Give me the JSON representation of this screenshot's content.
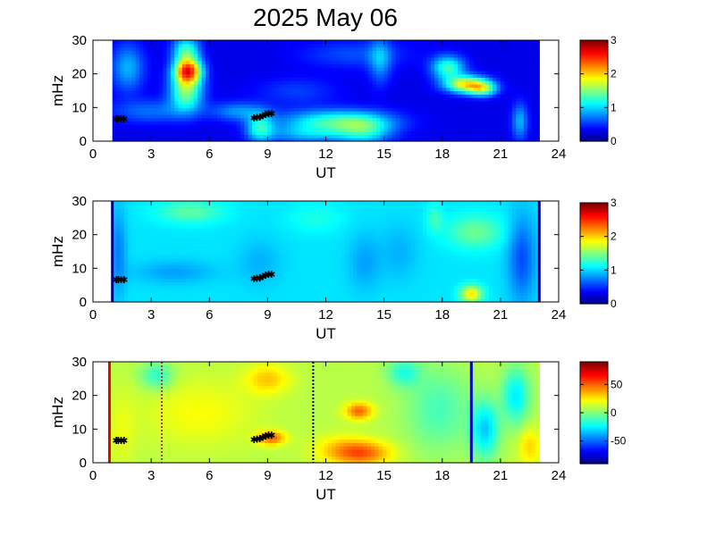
{
  "title": "2025 May 06",
  "chart_data": [
    {
      "type": "heatmap",
      "xlabel": "UT",
      "ylabel": "mHz",
      "xlim": [
        0,
        24
      ],
      "ylim": [
        0,
        30
      ],
      "xticks": [
        "0",
        "3",
        "6",
        "9",
        "12",
        "15",
        "18",
        "21",
        "24"
      ],
      "yticks": [
        "0",
        "10",
        "20",
        "30"
      ],
      "data_extent_ut": [
        1.0,
        23.0
      ],
      "colorbar": {
        "range": [
          0,
          3
        ],
        "ticks": [
          "0",
          "1",
          "2",
          "3"
        ]
      },
      "baseline": 0.3,
      "blobs": [
        {
          "x": 4.9,
          "y": 21,
          "sx": 0.5,
          "sy": 2.5,
          "v": 1.9
        },
        {
          "x": 4.8,
          "y": 15,
          "sx": 0.6,
          "sy": 4,
          "v": 1.2
        },
        {
          "x": 4.8,
          "y": 27,
          "sx": 0.5,
          "sy": 3,
          "v": 1.0
        },
        {
          "x": 1.8,
          "y": 22,
          "sx": 0.6,
          "sy": 5,
          "v": 0.6
        },
        {
          "x": 3.0,
          "y": 9,
          "sx": 1.5,
          "sy": 2.5,
          "v": 0.4
        },
        {
          "x": 7.5,
          "y": 9,
          "sx": 1.0,
          "sy": 2,
          "v": 0.5
        },
        {
          "x": 8.6,
          "y": 4,
          "sx": 0.5,
          "sy": 3,
          "v": 0.8
        },
        {
          "x": 12.5,
          "y": 6,
          "sx": 2.0,
          "sy": 2.5,
          "v": 0.95
        },
        {
          "x": 14.0,
          "y": 3,
          "sx": 1.0,
          "sy": 3,
          "v": 0.7
        },
        {
          "x": 11.0,
          "y": 2,
          "sx": 1.5,
          "sy": 2,
          "v": 0.5
        },
        {
          "x": 14.8,
          "y": 24,
          "sx": 0.4,
          "sy": 5,
          "v": 0.5
        },
        {
          "x": 18.3,
          "y": 22,
          "sx": 0.6,
          "sy": 2.5,
          "v": 1.0
        },
        {
          "x": 19.3,
          "y": 17,
          "sx": 0.8,
          "sy": 1.8,
          "v": 1.6
        },
        {
          "x": 20.1,
          "y": 15.5,
          "sx": 0.5,
          "sy": 1.5,
          "v": 0.9
        },
        {
          "x": 22.0,
          "y": 6,
          "sx": 0.3,
          "sy": 4,
          "v": 0.6
        },
        {
          "x": 13.5,
          "y": 26,
          "sx": 2.0,
          "sy": 3,
          "v": 0.3
        },
        {
          "x": 10.5,
          "y": 15,
          "sx": 1.5,
          "sy": 3,
          "v": 0.25
        }
      ],
      "markers": [
        {
          "ut": 1.2,
          "mhz": 6.6
        },
        {
          "ut": 1.3,
          "mhz": 6.6
        },
        {
          "ut": 1.45,
          "mhz": 6.6
        },
        {
          "ut": 1.6,
          "mhz": 6.6
        },
        {
          "ut": 8.3,
          "mhz": 6.9
        },
        {
          "ut": 8.45,
          "mhz": 7.0
        },
        {
          "ut": 8.6,
          "mhz": 7.2
        },
        {
          "ut": 8.75,
          "mhz": 7.6
        },
        {
          "ut": 8.9,
          "mhz": 8.0
        },
        {
          "ut": 9.05,
          "mhz": 8.2
        },
        {
          "ut": 9.2,
          "mhz": 8.2
        }
      ],
      "lines": []
    },
    {
      "type": "heatmap",
      "xlabel": "UT",
      "ylabel": "mHz",
      "xlim": [
        0,
        24
      ],
      "ylim": [
        0,
        30
      ],
      "xticks": [
        "0",
        "3",
        "6",
        "9",
        "12",
        "15",
        "18",
        "21",
        "24"
      ],
      "yticks": [
        "0",
        "10",
        "20",
        "30"
      ],
      "data_extent_ut": [
        1.0,
        23.0
      ],
      "colorbar": {
        "range": [
          0,
          3
        ],
        "ticks": [
          "0",
          "1",
          "2",
          "3"
        ]
      },
      "baseline": 1.05,
      "blobs": [
        {
          "x": 5.0,
          "y": 27,
          "sx": 1.2,
          "sy": 2.5,
          "v": 0.35
        },
        {
          "x": 4.2,
          "y": 9,
          "sx": 1.5,
          "sy": 2.5,
          "v": -0.2
        },
        {
          "x": 8.6,
          "y": 12,
          "sx": 0.8,
          "sy": 5,
          "v": -0.15
        },
        {
          "x": 14.0,
          "y": 12,
          "sx": 0.6,
          "sy": 6,
          "v": -0.2
        },
        {
          "x": 15.8,
          "y": 15,
          "sx": 0.7,
          "sy": 6,
          "v": -0.15
        },
        {
          "x": 19.5,
          "y": 2.5,
          "sx": 0.4,
          "sy": 1.8,
          "v": 0.9
        },
        {
          "x": 19.7,
          "y": 21,
          "sx": 1.0,
          "sy": 3.5,
          "v": 0.4
        },
        {
          "x": 22.1,
          "y": 13,
          "sx": 0.5,
          "sy": 9,
          "v": -0.45
        },
        {
          "x": 1.3,
          "y": 15,
          "sx": 0.3,
          "sy": 9,
          "v": -0.3
        },
        {
          "x": 17.6,
          "y": 25,
          "sx": 0.3,
          "sy": 3,
          "v": 0.25
        },
        {
          "x": 11.5,
          "y": 25,
          "sx": 1.0,
          "sy": 3,
          "v": 0.15
        }
      ],
      "markers": [
        {
          "ut": 1.2,
          "mhz": 6.6
        },
        {
          "ut": 1.3,
          "mhz": 6.6
        },
        {
          "ut": 1.45,
          "mhz": 6.6
        },
        {
          "ut": 1.6,
          "mhz": 6.6
        },
        {
          "ut": 8.3,
          "mhz": 6.9
        },
        {
          "ut": 8.45,
          "mhz": 7.0
        },
        {
          "ut": 8.6,
          "mhz": 7.2
        },
        {
          "ut": 8.75,
          "mhz": 7.6
        },
        {
          "ut": 8.9,
          "mhz": 8.0
        },
        {
          "ut": 9.05,
          "mhz": 8.2
        },
        {
          "ut": 9.2,
          "mhz": 8.2
        }
      ],
      "lines": [
        {
          "ut": 1.0,
          "color": "#00008f",
          "style": "solid"
        },
        {
          "ut": 23.0,
          "color": "#00008f",
          "style": "solid"
        }
      ]
    },
    {
      "type": "heatmap",
      "xlabel": "UT",
      "ylabel": "mHz",
      "xlim": [
        0,
        24
      ],
      "ylim": [
        0,
        30
      ],
      "xticks": [
        "0",
        "3",
        "6",
        "9",
        "12",
        "15",
        "18",
        "21",
        "24"
      ],
      "yticks": [
        "0",
        "10",
        "20",
        "30"
      ],
      "data_extent_ut": [
        0.8,
        23.0
      ],
      "colorbar": {
        "range": [
          -90,
          90
        ],
        "ticks": [
          "50",
          "0",
          "-50"
        ],
        "tick_values": [
          50,
          0,
          -50
        ]
      },
      "baseline": 10,
      "blobs": [
        {
          "x": 5.5,
          "y": 15,
          "sx": 2.0,
          "sy": 7,
          "v": 12
        },
        {
          "x": 9.0,
          "y": 25,
          "sx": 0.8,
          "sy": 3,
          "v": 22
        },
        {
          "x": 13.7,
          "y": 15.5,
          "sx": 0.5,
          "sy": 1.8,
          "v": 40
        },
        {
          "x": 14.0,
          "y": 3,
          "sx": 1.0,
          "sy": 2.5,
          "v": 35
        },
        {
          "x": 12.8,
          "y": 4,
          "sx": 1.0,
          "sy": 3,
          "v": 20
        },
        {
          "x": 9.2,
          "y": 7.5,
          "sx": 0.5,
          "sy": 1.5,
          "v": 40
        },
        {
          "x": 3.3,
          "y": 26,
          "sx": 0.6,
          "sy": 3,
          "v": -25
        },
        {
          "x": 17.8,
          "y": 16,
          "sx": 1.2,
          "sy": 9,
          "v": -20
        },
        {
          "x": 20.2,
          "y": 10,
          "sx": 0.5,
          "sy": 6,
          "v": -40
        },
        {
          "x": 21.8,
          "y": 20,
          "sx": 0.5,
          "sy": 6,
          "v": -35
        },
        {
          "x": 16.0,
          "y": 27,
          "sx": 0.6,
          "sy": 3,
          "v": -25
        },
        {
          "x": 1.5,
          "y": 10,
          "sx": 0.5,
          "sy": 8,
          "v": 8
        },
        {
          "x": 22.5,
          "y": 5,
          "sx": 0.4,
          "sy": 4,
          "v": 20
        }
      ],
      "markers": [
        {
          "ut": 1.2,
          "mhz": 6.6
        },
        {
          "ut": 1.3,
          "mhz": 6.6
        },
        {
          "ut": 1.45,
          "mhz": 6.6
        },
        {
          "ut": 1.6,
          "mhz": 6.6
        },
        {
          "ut": 8.3,
          "mhz": 6.9
        },
        {
          "ut": 8.45,
          "mhz": 7.0
        },
        {
          "ut": 8.6,
          "mhz": 7.2
        },
        {
          "ut": 8.75,
          "mhz": 7.6
        },
        {
          "ut": 8.9,
          "mhz": 8.0
        },
        {
          "ut": 9.05,
          "mhz": 8.2
        },
        {
          "ut": 9.2,
          "mhz": 8.2
        }
      ],
      "lines": [
        {
          "ut": 0.85,
          "color": "#cc1100",
          "style": "solid"
        },
        {
          "ut": 3.55,
          "color": "#aa3344",
          "style": "dotted"
        },
        {
          "ut": 11.35,
          "color": "#000033",
          "style": "dotted"
        },
        {
          "ut": 19.5,
          "color": "#0000cc",
          "style": "solid"
        }
      ]
    }
  ]
}
